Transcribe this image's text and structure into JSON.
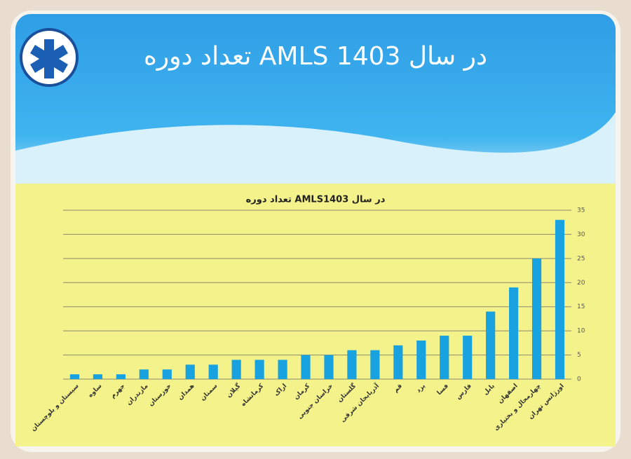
{
  "slide_title": "تعداد دوره AMLS در سال 1403",
  "chart_data": {
    "type": "bar",
    "title": "تعداد دوره  AMLSدر سال 1403",
    "categories": [
      "سیستان و بلوچستان",
      "ساوه",
      "جهرم",
      "مازندران",
      "خوزستان",
      "همدان",
      "سمنان",
      "گیلان",
      "کرمانشاه",
      "اراک",
      "کرمان",
      "خراسان جنوبی",
      "گلستان",
      "آذربایجان شرقی",
      "قم",
      "یزد",
      "فسا",
      "فارس",
      "بابل",
      "اصفهان",
      "چهارمحال و بختیاری",
      "اورژانس تهران"
    ],
    "values": [
      1,
      1,
      1,
      2,
      2,
      3,
      3,
      4,
      4,
      4,
      5,
      5,
      6,
      6,
      7,
      8,
      9,
      9,
      14,
      19,
      25,
      33
    ],
    "color": "#19a2e0",
    "ylim": [
      0,
      35
    ],
    "yticks": [
      0,
      5,
      10,
      15,
      20,
      25,
      30,
      35
    ],
    "grid": true
  }
}
